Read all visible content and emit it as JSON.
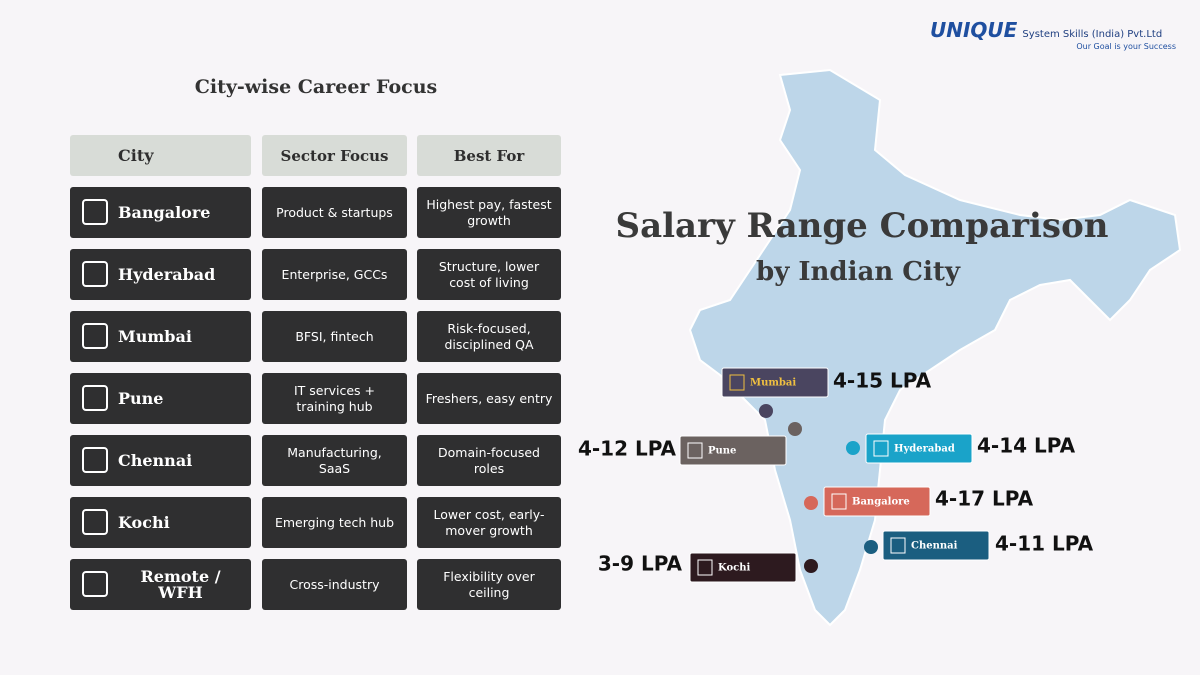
{
  "logo": {
    "brand": "UNIQUE",
    "name": "System Skills (India) Pvt.Ltd",
    "tagline": "Our Goal is your Success"
  },
  "table": {
    "title": "City-wise Career Focus",
    "headers": [
      "City",
      "Sector Focus",
      "Best For"
    ],
    "rows": [
      [
        "Bangalore",
        "Product & startups",
        "Highest pay, fastest growth"
      ],
      [
        "Hyderabad",
        "Enterprise, GCCs",
        "Structure, lower cost of living"
      ],
      [
        "Mumbai",
        "BFSI, fintech",
        "Risk-focused, disciplined QA"
      ],
      [
        "Pune",
        "IT services + training hub",
        "Freshers, easy entry"
      ],
      [
        "Chennai",
        "Manufacturing, SaaS",
        "Domain-focused roles"
      ],
      [
        "Kochi",
        "Emerging tech hub",
        "Lower cost, early-mover growth"
      ],
      [
        "Remote / WFH",
        "Cross-industry",
        "Flexibility over ceiling"
      ]
    ]
  },
  "map": {
    "title": "Salary Range Comparison",
    "subtitle": "by Indian City",
    "cities": [
      {
        "name": "Mumbai",
        "range": "4-15 LPA"
      },
      {
        "name": "Pune",
        "range": "4-12 LPA"
      },
      {
        "name": "Hyderabad",
        "range": "4-14 LPA"
      },
      {
        "name": "Bangalore",
        "range": "4-17 LPA"
      },
      {
        "name": "Chennai",
        "range": "4-11 LPA"
      },
      {
        "name": "Kochi",
        "range": "3-9 LPA"
      }
    ]
  }
}
